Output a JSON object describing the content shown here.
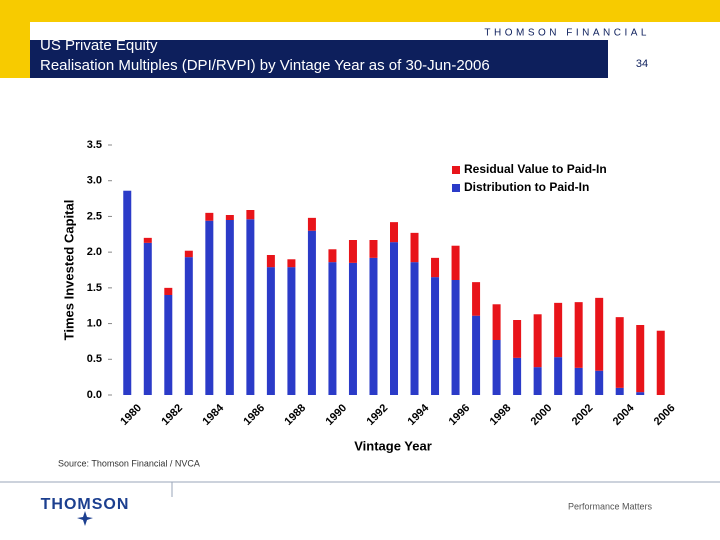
{
  "slide": {
    "brand": "THOMSON FINANCIAL",
    "page_number": 34,
    "source": "Source: Thomson Financial / NVCA",
    "logo": "THOMSON",
    "tagline": "Performance Matters"
  },
  "chart_data": {
    "type": "stacked-bar",
    "title": "US Private Equity",
    "subtitle": "Realisation Multiples (DPI/RVPI) by Vintage Year as of 30-Jun-2006",
    "x_label": "Vintage Year",
    "y_label": "Times Invested Capital",
    "categories": [
      "1980",
      null,
      "1982",
      null,
      "1984",
      null,
      "1986",
      null,
      "1988",
      null,
      "1990",
      null,
      "1992",
      null,
      "1994",
      null,
      "1996",
      null,
      "1998",
      null,
      "2000",
      null,
      "2002",
      null,
      "2004",
      null,
      "2006"
    ],
    "series": [
      {
        "name": "Distribution to Paid-In",
        "color": "#2b3bc8",
        "values": [
          2.86,
          2.13,
          1.4,
          1.93,
          2.44,
          2.45,
          2.46,
          1.79,
          1.79,
          2.3,
          1.86,
          1.85,
          1.92,
          2.14,
          1.86,
          1.65,
          1.61,
          1.11,
          0.77,
          0.52,
          0.39,
          0.53,
          0.38,
          0.34,
          0.1,
          0.04,
          0
        ]
      },
      {
        "name": "Residual Value to Paid-In",
        "color": "#e8141a",
        "values": [
          0,
          0.07,
          0.1,
          0.09,
          0.11,
          0.07,
          0.13,
          0.17,
          0.11,
          0.18,
          0.18,
          0.32,
          0.25,
          0.28,
          0.41,
          0.27,
          0.48,
          0.47,
          0.5,
          0.53,
          0.74,
          0.76,
          0.92,
          1.02,
          0.99,
          0.94,
          0.9
        ]
      }
    ],
    "ylim": [
      0,
      3.5
    ],
    "yticks": [
      {
        "value": 0,
        "label": "0.0"
      },
      0.5,
      {
        "value": 1,
        "label": "1.0"
      },
      1.5,
      {
        "value": 2,
        "label": "2.0"
      },
      2.5,
      {
        "value": 3,
        "label": "3.0"
      },
      3.5
    ],
    "legend": "top-right",
    "grid": false
  }
}
